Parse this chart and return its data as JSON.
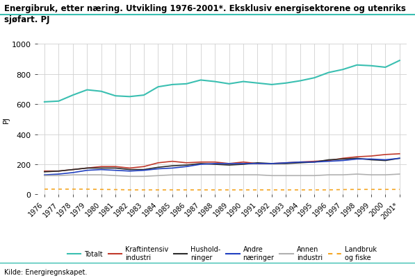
{
  "title": "Energibruk, etter næring. Utvikling 1976-2001*. Eksklusiv energisektorene og utenriks\nsjøfart. PJ",
  "ylabel": "PJ",
  "source": "Kilde: Energiregnskapet.",
  "year_labels": [
    "1976",
    "1977",
    "1978",
    "1979",
    "1980",
    "1981",
    "1982",
    "1983",
    "1984",
    "1985",
    "1986",
    "1987",
    "1988",
    "1989",
    "1990",
    "1991",
    "1992",
    "1993",
    "1994",
    "1995",
    "1996",
    "1997",
    "1998",
    "1999",
    "2000",
    "2001*"
  ],
  "totalt": [
    615,
    620,
    660,
    695,
    685,
    655,
    650,
    660,
    715,
    730,
    735,
    760,
    750,
    735,
    750,
    740,
    730,
    740,
    755,
    775,
    810,
    830,
    860,
    855,
    845,
    890
  ],
  "kraftintensiv": [
    155,
    155,
    165,
    175,
    185,
    185,
    175,
    185,
    210,
    220,
    210,
    215,
    215,
    205,
    215,
    205,
    205,
    210,
    215,
    220,
    225,
    240,
    250,
    255,
    265,
    270
  ],
  "husholdninger": [
    150,
    155,
    165,
    175,
    175,
    175,
    165,
    165,
    180,
    190,
    195,
    205,
    200,
    195,
    200,
    210,
    205,
    205,
    210,
    215,
    230,
    235,
    240,
    230,
    225,
    240
  ],
  "andre_naringer": [
    130,
    135,
    145,
    160,
    165,
    160,
    155,
    160,
    170,
    175,
    185,
    200,
    205,
    205,
    205,
    205,
    205,
    210,
    215,
    215,
    220,
    225,
    235,
    235,
    230,
    240
  ],
  "annen_industri": [
    125,
    125,
    130,
    130,
    130,
    125,
    120,
    120,
    125,
    130,
    130,
    130,
    130,
    130,
    130,
    130,
    125,
    125,
    125,
    125,
    130,
    130,
    135,
    130,
    130,
    135
  ],
  "landbruk_og_fiske": [
    35,
    35,
    35,
    35,
    33,
    32,
    30,
    30,
    30,
    30,
    30,
    30,
    30,
    30,
    30,
    30,
    30,
    30,
    30,
    30,
    30,
    32,
    33,
    33,
    33,
    33
  ],
  "color_totalt": "#3abfb1",
  "color_kraftintensiv": "#c0392b",
  "color_husholdninger": "#2c2c2c",
  "color_andre_naringer": "#2040c0",
  "color_annen_industri": "#b0b0b0",
  "color_landbruk_og_fiske": "#f5a623",
  "ylim": [
    0,
    1000
  ],
  "yticks": [
    0,
    200,
    400,
    600,
    800,
    1000
  ],
  "bg_color": "#ffffff",
  "grid_color": "#d0d0d0",
  "legend_labels": [
    "Totalt",
    "Kraftintensiv\nindustri",
    "Hushold-\nninger",
    "Andre\nnæringer",
    "Annen\nindustri",
    "Landbruk\nog fiske"
  ]
}
